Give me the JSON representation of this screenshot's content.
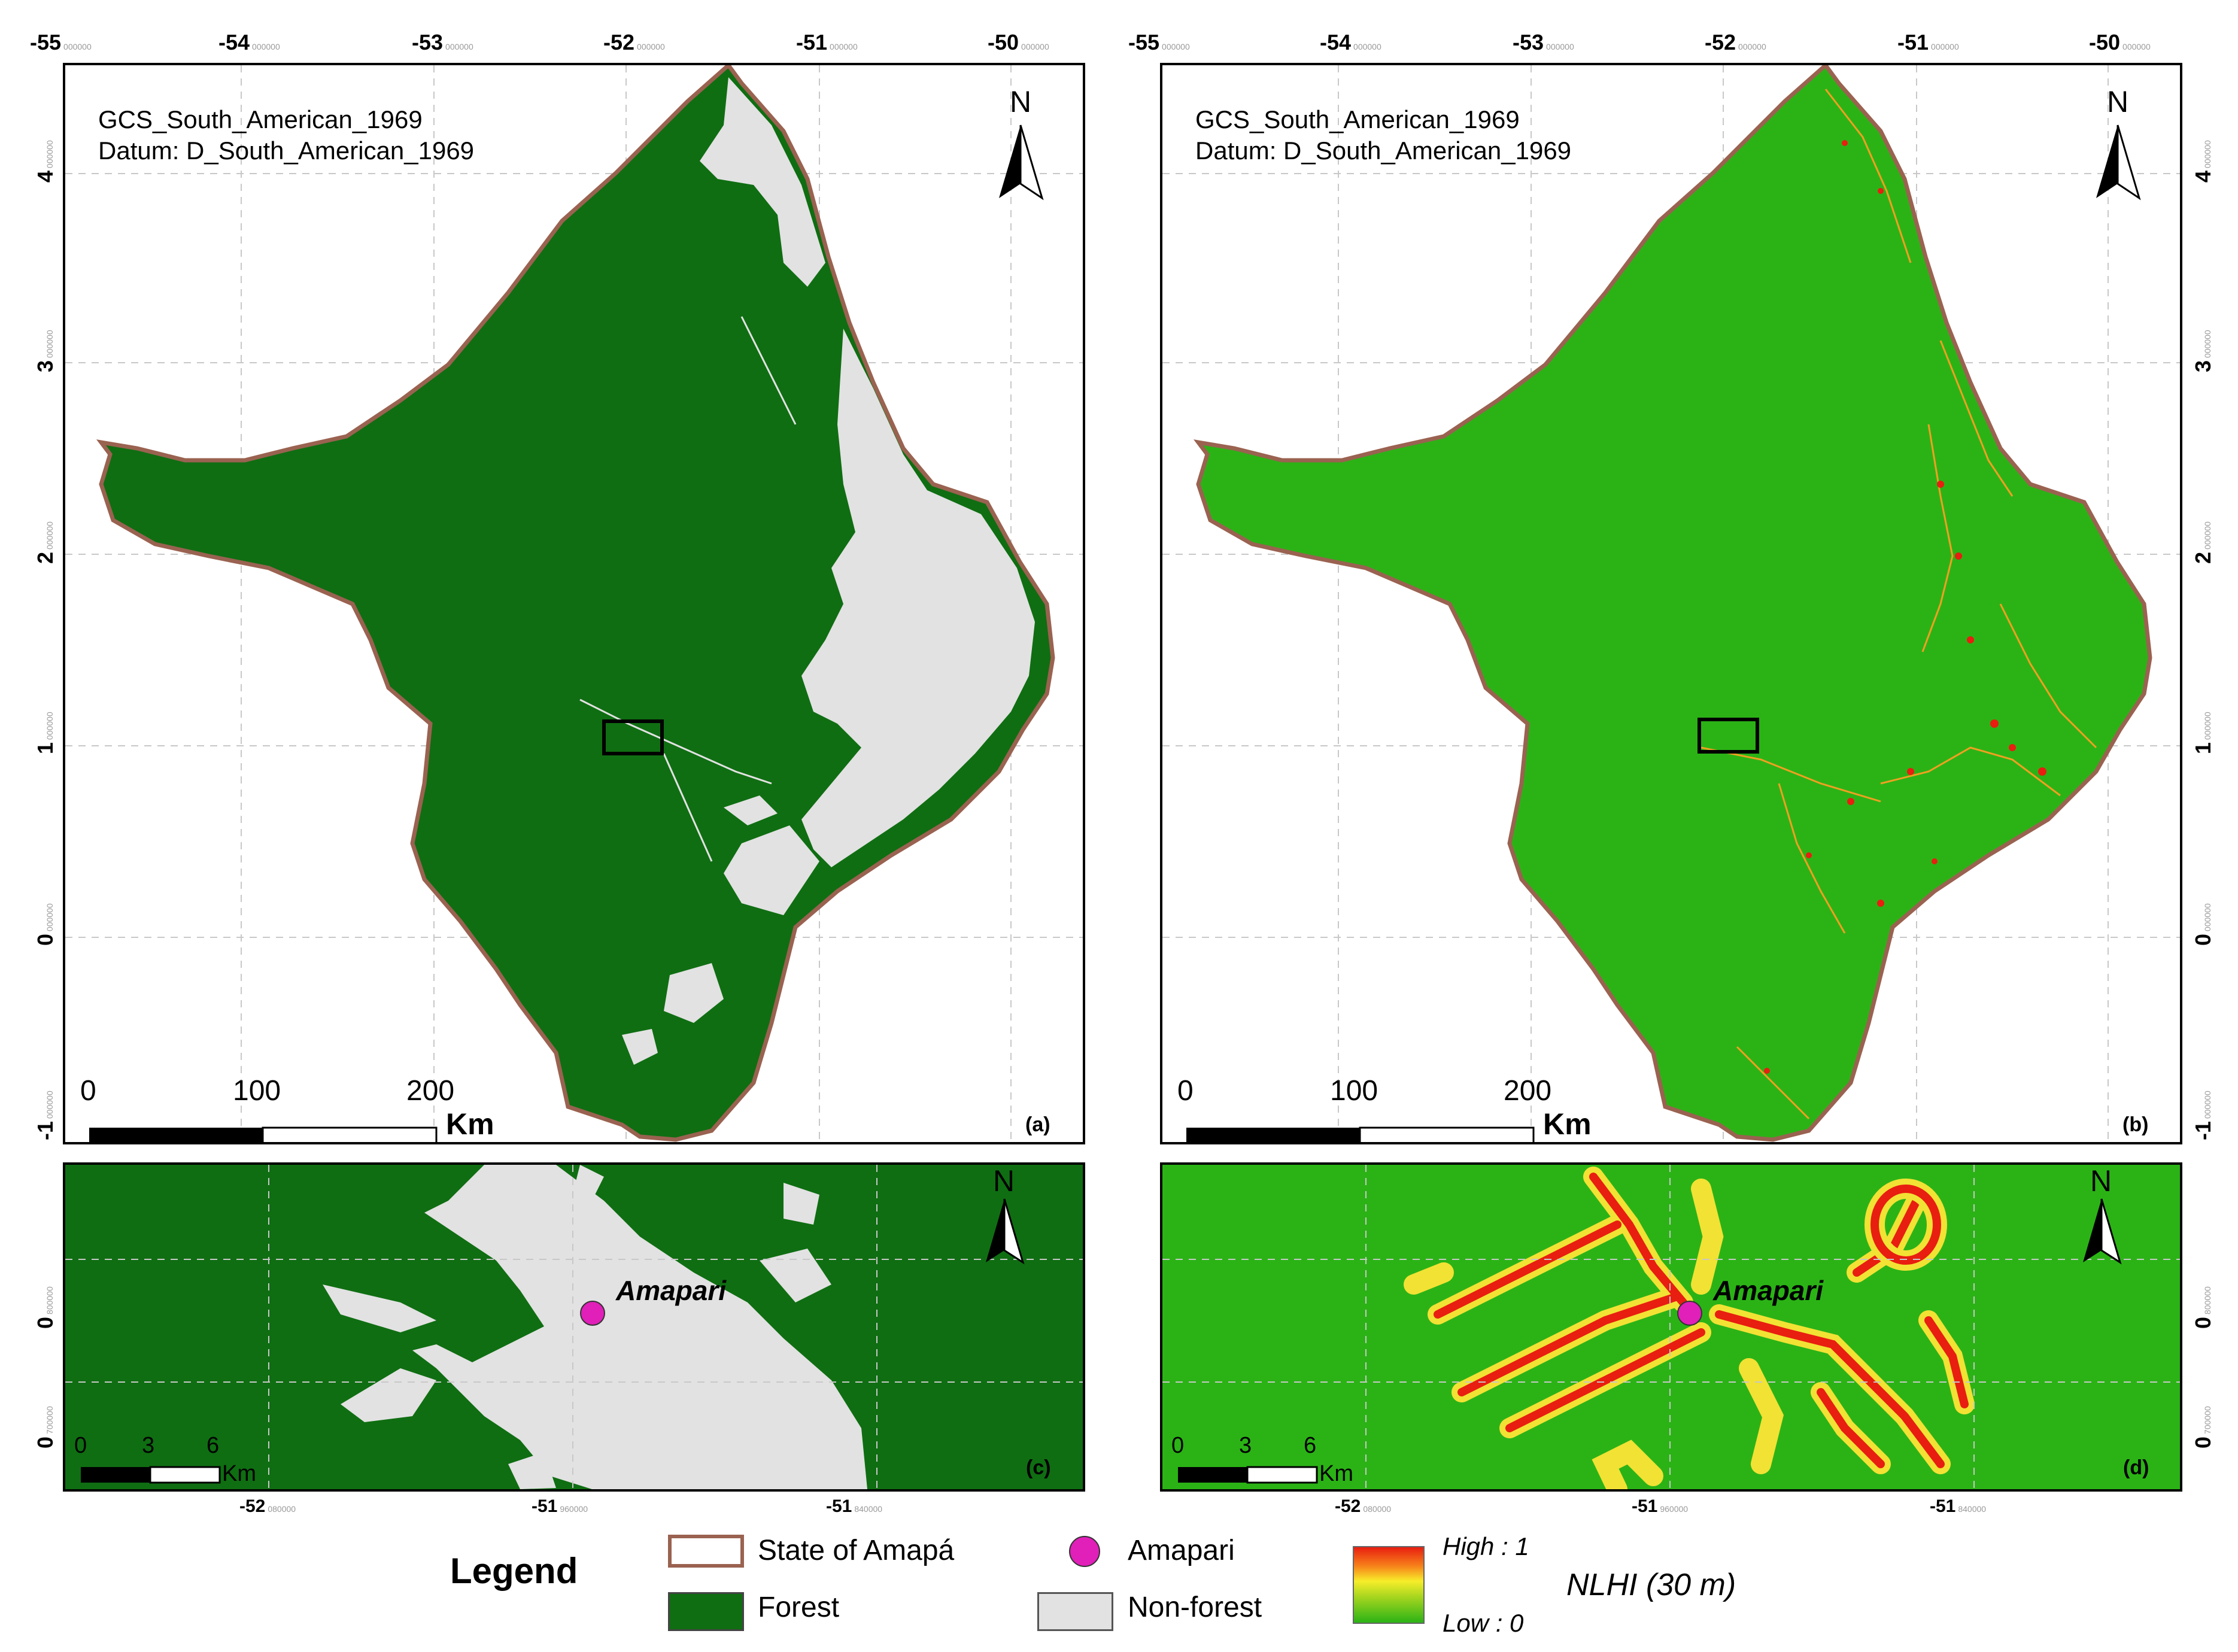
{
  "top_axis": {
    "labels": [
      "-55",
      "-54",
      "-53",
      "-52",
      "-51",
      "-50"
    ],
    "sub": "000000"
  },
  "side_axis": {
    "labels": [
      "4",
      "3",
      "2",
      "1",
      "0",
      "-1"
    ],
    "sub": "000000"
  },
  "bottom_axis": {
    "labels": [
      "-52",
      "-51",
      "-51"
    ],
    "subs": [
      "080000",
      "960000",
      "840000"
    ]
  },
  "small_side_axis": {
    "labels": [
      "0",
      "0"
    ],
    "subs": [
      "800000",
      "700000"
    ]
  },
  "crs": {
    "line1": "GCS_South_American_1969",
    "line2": "Datum: D_South_American_1969"
  },
  "panels": {
    "a": "(a)",
    "b": "(b)",
    "c": "(c)",
    "d": "(d)"
  },
  "scale_large": {
    "ticks": [
      "0",
      "100",
      "200"
    ],
    "unit": "Km"
  },
  "scale_small": {
    "ticks": [
      "0",
      "3",
      "6"
    ],
    "unit": "Km"
  },
  "north_label": "N",
  "place_name": "Amapari",
  "legend": {
    "title": "Legend",
    "state": "State of Amapá",
    "forest": "Forest",
    "amapari": "Amapari",
    "nonforest": "Non-forest",
    "high": "High : 1",
    "low": "Low : 0",
    "nlhi": "NLHI (30 m)"
  },
  "colors": {
    "forest": "#0f6e12",
    "nonforest": "#e2e2e2",
    "nlhi_low": "#2bb316",
    "nlhi_high": "#e81e10",
    "boundary": "#9a6250",
    "place_marker": "#e020b8"
  },
  "map_extent": {
    "lon_range": [
      -55,
      -50
    ],
    "lat_range": [
      -1,
      4.3
    ]
  }
}
